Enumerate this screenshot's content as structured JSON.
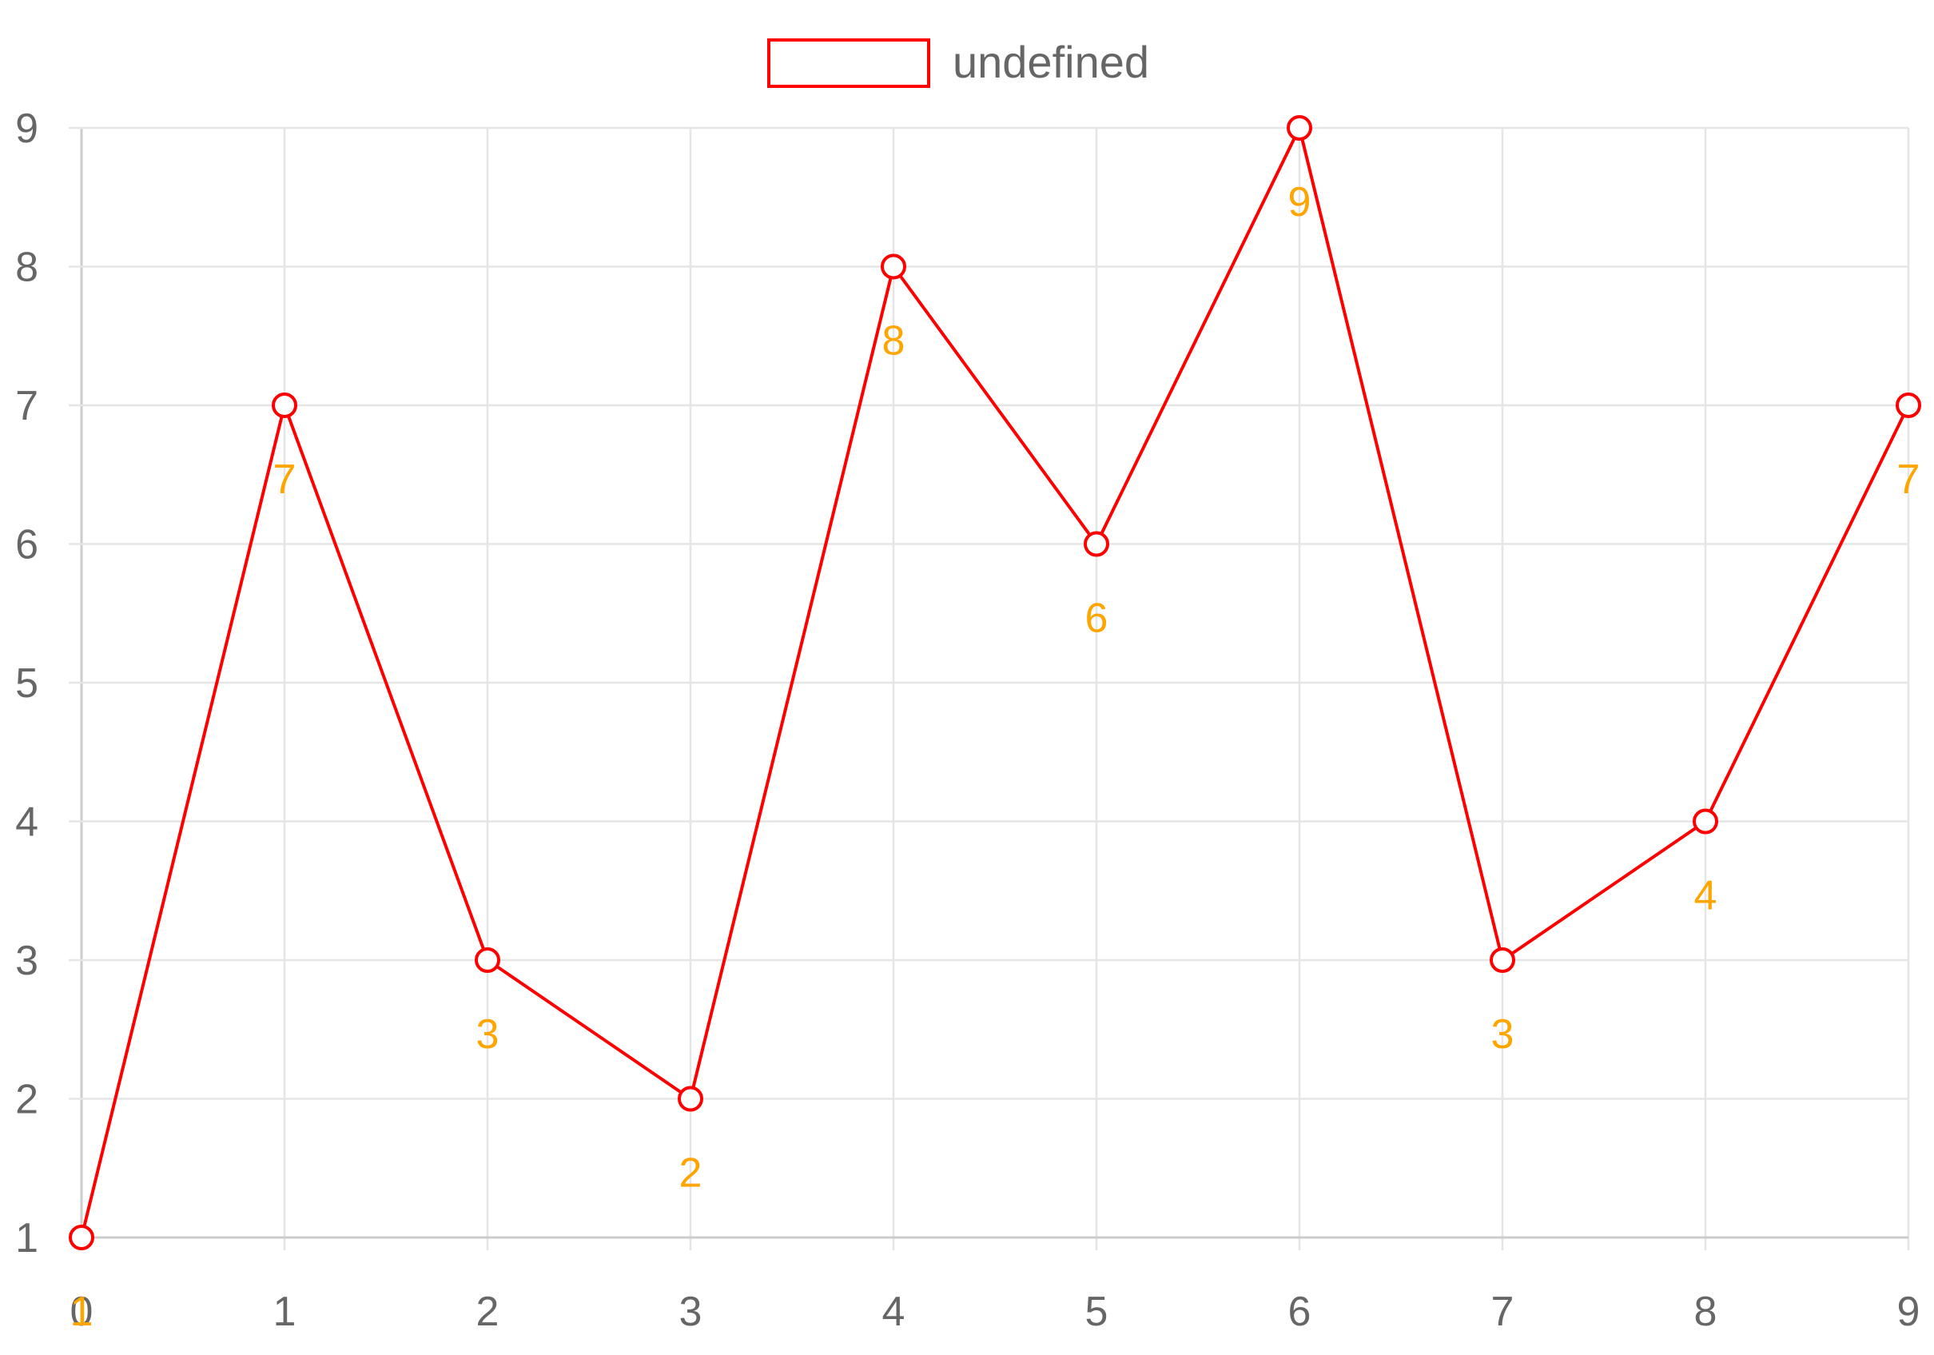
{
  "chart_data": {
    "type": "line",
    "x": [
      0,
      1,
      2,
      3,
      4,
      5,
      6,
      7,
      8,
      9
    ],
    "series": [
      {
        "name": "undefined",
        "values": [
          1,
          7,
          3,
          2,
          8,
          6,
          9,
          3,
          4,
          7
        ],
        "color": "#ff0000"
      }
    ],
    "x_ticks": [
      "0",
      "1",
      "2",
      "3",
      "4",
      "5",
      "6",
      "7",
      "8",
      "9"
    ],
    "y_ticks": [
      "1",
      "2",
      "3",
      "4",
      "5",
      "6",
      "7",
      "8",
      "9"
    ],
    "xlim": [
      0,
      9
    ],
    "ylim": [
      1,
      9
    ],
    "grid": true,
    "legend_position": "top-center",
    "data_labels": true,
    "data_label_color": "#ffa500",
    "point_fill": "#ffffff",
    "grid_color": "#e5e5e5",
    "tick_color": "#666666"
  },
  "legend": {
    "label": "undefined"
  }
}
